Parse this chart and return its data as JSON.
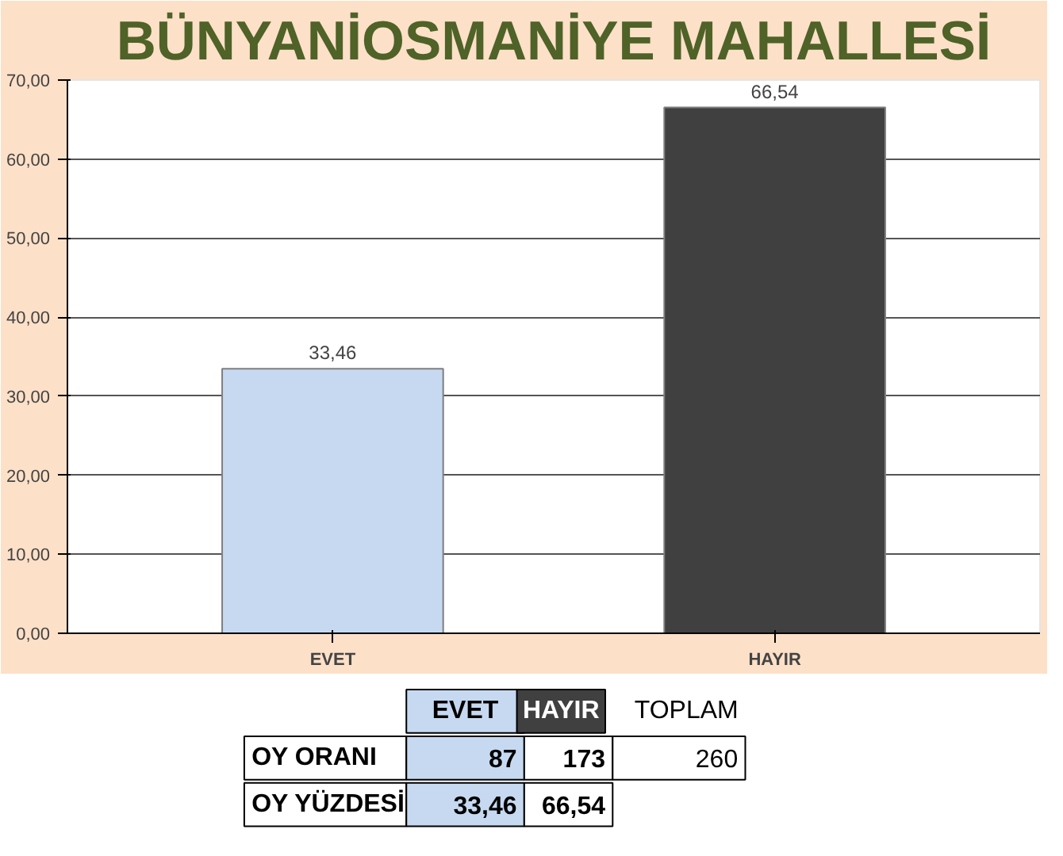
{
  "chart_data": {
    "type": "bar",
    "title": "BÜNYANİOSMANİYE MAHALLESİ",
    "categories": [
      "EVET",
      "HAYIR"
    ],
    "values": [
      33.46,
      66.54
    ],
    "colors": [
      "#c6d9f1",
      "#404040"
    ],
    "value_labels": [
      "33,46",
      "66,54"
    ],
    "ylim": [
      0,
      70
    ],
    "yticks": [
      {
        "value": 0,
        "label": "0,00"
      },
      {
        "value": 10,
        "label": "10,00"
      },
      {
        "value": 20,
        "label": "20,00"
      },
      {
        "value": 30,
        "label": "30,00"
      },
      {
        "value": 40,
        "label": "40,00"
      },
      {
        "value": 50,
        "label": "50,00"
      },
      {
        "value": 60,
        "label": "60,00"
      },
      {
        "value": 70,
        "label": "70,00"
      }
    ],
    "grid": "y",
    "annotations": [
      "OY ORANI",
      "87",
      "173",
      "TOPLAM",
      "260",
      "OY YÜZDESİ"
    ]
  }
}
